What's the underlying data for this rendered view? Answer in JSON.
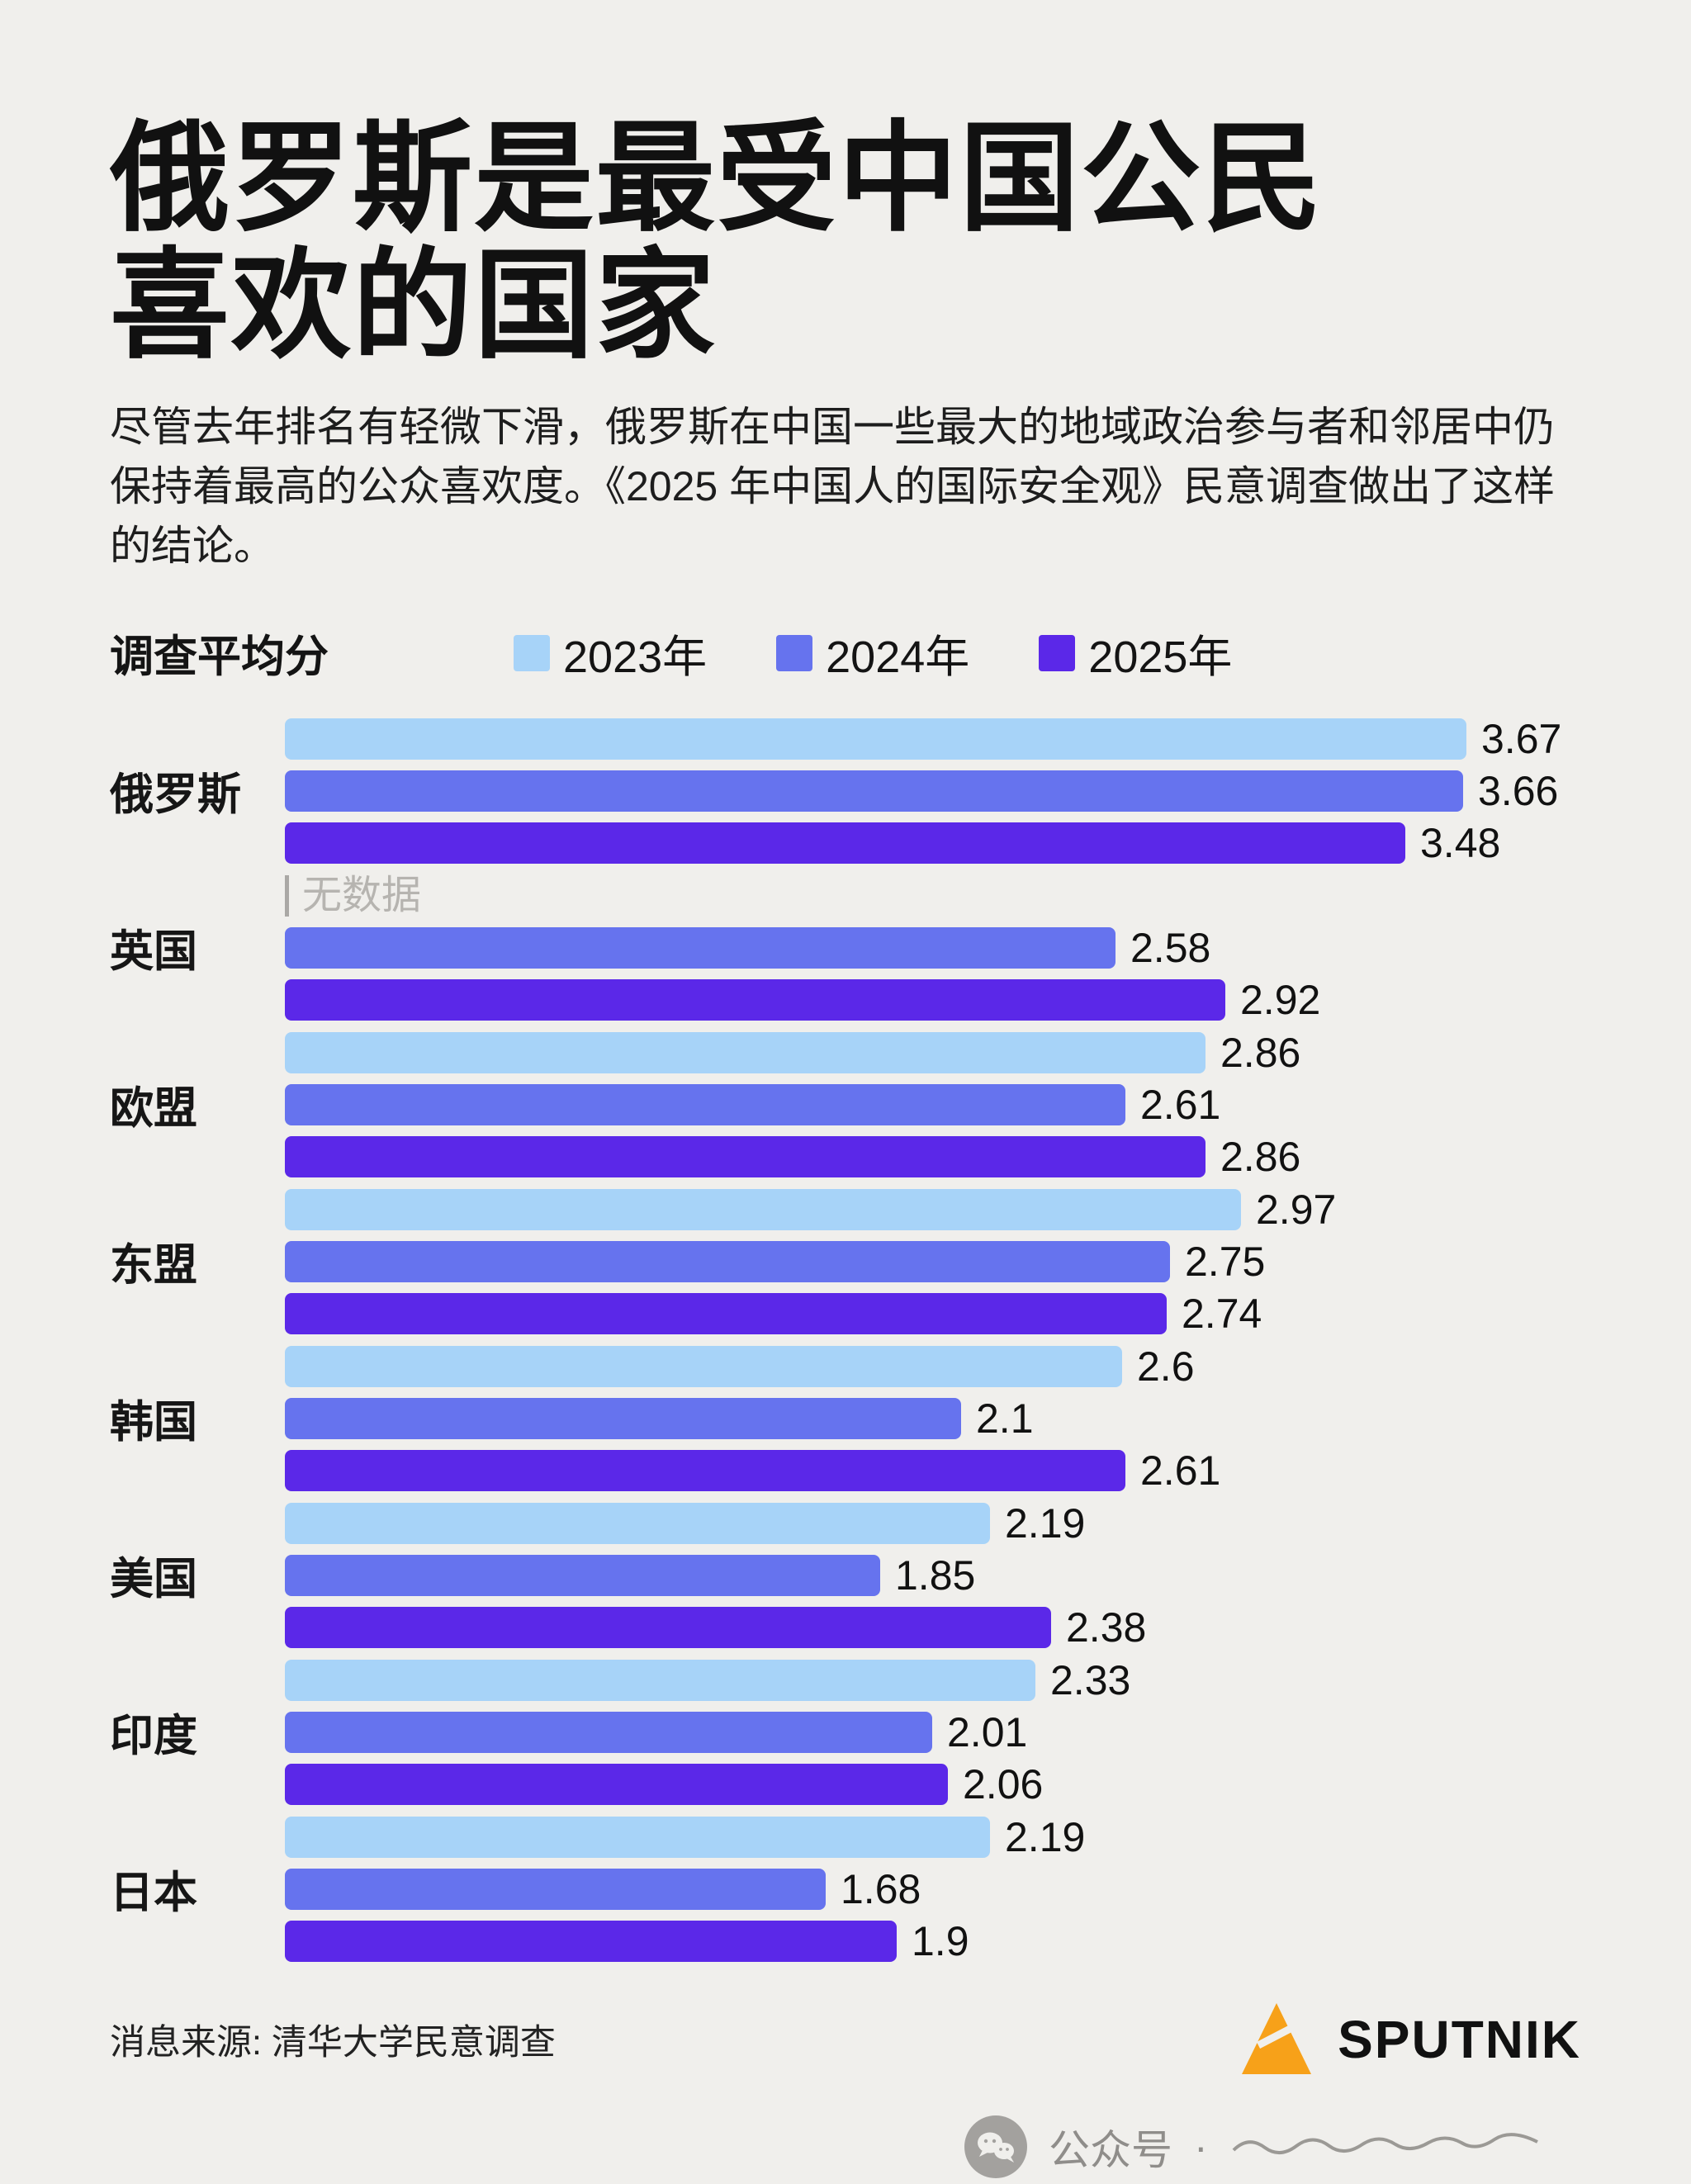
{
  "page": {
    "background": "#f0efec"
  },
  "header": {
    "title_line1": "俄罗斯是最受中国公民",
    "title_line2": "喜欢的国家",
    "subtitle": "尽管去年排名有轻微下滑，俄罗斯在中国一些最大的地域政治参与者和邻居中仍保持着最高的公众喜欢度。《2025 年中国人的国际安全观》民意调查做出了这样的结论。"
  },
  "legend": {
    "label": "调查平均分",
    "items": [
      {
        "label": "2023年",
        "color": "#a7d3f8"
      },
      {
        "label": "2024年",
        "color": "#6673ee"
      },
      {
        "label": "2025年",
        "color": "#5b28e8"
      }
    ]
  },
  "chart_data": {
    "type": "bar",
    "orientation": "horizontal",
    "title": "俄罗斯是最受中国公民喜欢的国家",
    "value_axis_label": "调查平均分",
    "value_range": [
      0,
      3.67
    ],
    "no_data_label": "无数据",
    "categories": [
      "俄罗斯",
      "英国",
      "欧盟",
      "东盟",
      "韩国",
      "美国",
      "印度",
      "日本"
    ],
    "series": [
      {
        "name": "2023年",
        "color": "#a7d3f8",
        "values": [
          3.67,
          null,
          2.86,
          2.97,
          2.6,
          2.19,
          2.33,
          2.19
        ]
      },
      {
        "name": "2024年",
        "color": "#6673ee",
        "values": [
          3.66,
          2.58,
          2.61,
          2.75,
          2.1,
          1.85,
          2.01,
          1.68
        ]
      },
      {
        "name": "2025年",
        "color": "#5b28e8",
        "values": [
          3.48,
          2.92,
          2.86,
          2.74,
          2.61,
          2.38,
          2.06,
          1.9
        ]
      }
    ],
    "legend_position": "top",
    "grid": false
  },
  "footer": {
    "source": "消息来源: 清华大学民意调查",
    "brand": "SPUTNIK",
    "brand_color": "#f7a119",
    "wechat_label": "公众号",
    "dot": "·"
  }
}
